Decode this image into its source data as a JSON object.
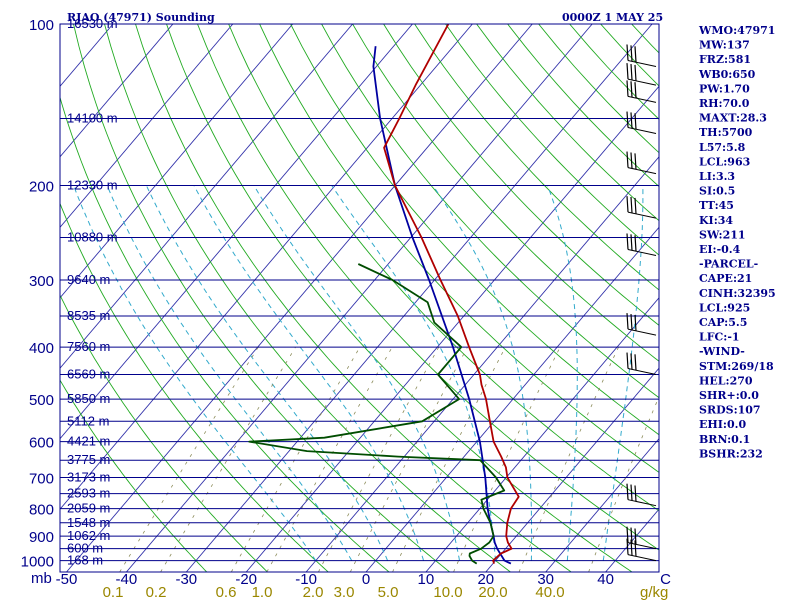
{
  "header": {
    "station": "RJAO (47971) Sounding",
    "time": "0000Z  1 MAY 25"
  },
  "indices": [
    "WMO:47971",
    "MW:137",
    "FRZ:581",
    "WB0:650",
    "PW:1.70",
    "RH:70.0",
    "MAXT:28.3",
    "TH:5700",
    "L57:5.8",
    "LCL:963",
    "LI:3.3",
    "SI:0.5",
    "TT:45",
    "KI:34",
    "SW:211",
    "EI:-0.4",
    "-PARCEL-",
    "CAPE:21",
    "CINH:32395",
    "LCL:925",
    "CAP:5.5",
    "LFC:-1",
    "-WIND-",
    "STM:269/18",
    "HEL:270",
    "SHR+:0.0",
    "SRDS:107",
    "EHI:0.0",
    "BRN:0.1",
    "BSHR:232"
  ],
  "colors": {
    "axis": "#00008b",
    "isobar": "#00008b",
    "isotherm": "#3333aa",
    "dry_adiabat": "#22aa22",
    "moist_adiabat": "#33aacc",
    "mixing_ratio": "#8c8c5a",
    "temperature": "#b00000",
    "dewpoint": "#004d00",
    "parcel": "#0000a0",
    "wind": "#000000",
    "wlabel": "#9a8700"
  },
  "chart_data": {
    "type": "line",
    "pressure_axis": {
      "unit": "mb",
      "levels": [
        100,
        200,
        300,
        400,
        500,
        600,
        700,
        800,
        900,
        1000
      ],
      "labels": [
        "100",
        "200",
        "300",
        "400",
        "500",
        "600",
        "700",
        "800",
        "900",
        "1000"
      ]
    },
    "height_levels": [
      {
        "p": 100,
        "label": "16530 m"
      },
      {
        "p": 150,
        "label": "14100 m"
      },
      {
        "p": 200,
        "label": "12330 m"
      },
      {
        "p": 250,
        "label": "10880 m"
      },
      {
        "p": 300,
        "label": "9640 m"
      },
      {
        "p": 350,
        "label": "8535 m"
      },
      {
        "p": 400,
        "label": "7560 m"
      },
      {
        "p": 450,
        "label": "6569 m"
      },
      {
        "p": 500,
        "label": "5850 m"
      },
      {
        "p": 550,
        "label": "5112 m"
      },
      {
        "p": 600,
        "label": "4421 m"
      },
      {
        "p": 650,
        "label": "3775 m"
      },
      {
        "p": 700,
        "label": "3173 m"
      },
      {
        "p": 750,
        "label": "2593 m"
      },
      {
        "p": 800,
        "label": "2059 m"
      },
      {
        "p": 850,
        "label": "1548 m"
      },
      {
        "p": 900,
        "label": "1062 m"
      },
      {
        "p": 950,
        "label": "600 m"
      },
      {
        "p": 1000,
        "label": "168 m"
      }
    ],
    "temperature_axis": {
      "ticks": [
        -50,
        -40,
        -30,
        -20,
        -10,
        0,
        10,
        20,
        30,
        40,
        50
      ],
      "labels": [
        "-50",
        "-40",
        "-30",
        "-20",
        "-10",
        "0",
        "10",
        "20",
        "30",
        "40",
        "C"
      ],
      "range": [
        -50,
        50
      ]
    },
    "mixing_ratio_labels": {
      "values": [
        0.1,
        0.2,
        0.6,
        1.0,
        2.0,
        3.0,
        5.0,
        10.0,
        20.0,
        40.0
      ],
      "labels": [
        "0.1",
        "0.2",
        "0.6",
        "1.0",
        "2.0",
        "3.0",
        "5.0",
        "10.0",
        "20.0",
        "40.0"
      ],
      "unit": "g/kg"
    },
    "temperature": [
      [
        1013,
        20.2
      ],
      [
        1000,
        19.6
      ],
      [
        970,
        19.9
      ],
      [
        950,
        21.0
      ],
      [
        925,
        19.5
      ],
      [
        900,
        18.3
      ],
      [
        850,
        16.6
      ],
      [
        800,
        15.2
      ],
      [
        760,
        14.8
      ],
      [
        700,
        10.2
      ],
      [
        670,
        8.5
      ],
      [
        640,
        6.2
      ],
      [
        600,
        2.8
      ],
      [
        550,
        -0.7
      ],
      [
        500,
        -4.5
      ],
      [
        470,
        -7.3
      ],
      [
        450,
        -9.0
      ],
      [
        400,
        -14.7
      ],
      [
        350,
        -21.0
      ],
      [
        300,
        -29.0
      ],
      [
        250,
        -38.2
      ],
      [
        200,
        -50.0
      ],
      [
        170,
        -57.2
      ],
      [
        150,
        -58.8
      ],
      [
        130,
        -60.8
      ],
      [
        100,
        -64.0
      ]
    ],
    "dewpoint": [
      [
        1013,
        17.3
      ],
      [
        1000,
        16.1
      ],
      [
        980,
        15.0
      ],
      [
        970,
        14.7
      ],
      [
        950,
        15.9
      ],
      [
        925,
        16.4
      ],
      [
        900,
        16.2
      ],
      [
        850,
        13.8
      ],
      [
        800,
        10.6
      ],
      [
        770,
        9.0
      ],
      [
        740,
        11.5
      ],
      [
        700,
        8.3
      ],
      [
        650,
        3.2
      ],
      [
        640,
        -11.0
      ],
      [
        625,
        -27.0
      ],
      [
        600,
        -38.0
      ],
      [
        590,
        -26.0
      ],
      [
        550,
        -12.0
      ],
      [
        500,
        -9.0
      ],
      [
        450,
        -16.0
      ],
      [
        400,
        -16.0
      ],
      [
        360,
        -24.0
      ],
      [
        330,
        -28.0
      ],
      [
        300,
        -37.0
      ],
      [
        280,
        -45.0
      ]
    ],
    "parcel": [
      [
        1013,
        23.0
      ],
      [
        1000,
        21.5
      ],
      [
        950,
        18.6
      ],
      [
        925,
        17.3
      ],
      [
        900,
        16.2
      ],
      [
        850,
        13.8
      ],
      [
        800,
        11.3
      ],
      [
        700,
        6.5
      ],
      [
        600,
        0.5
      ],
      [
        500,
        -7.3
      ],
      [
        400,
        -17.4
      ],
      [
        300,
        -30.9
      ],
      [
        250,
        -39.7
      ],
      [
        200,
        -50.0
      ],
      [
        150,
        -62.0
      ],
      [
        120,
        -70.5
      ],
      [
        110,
        -73.0
      ]
    ],
    "wind_levels": [
      120,
      130,
      140,
      160,
      190,
      230,
      270,
      380,
      450,
      790,
      950,
      1000
    ]
  }
}
